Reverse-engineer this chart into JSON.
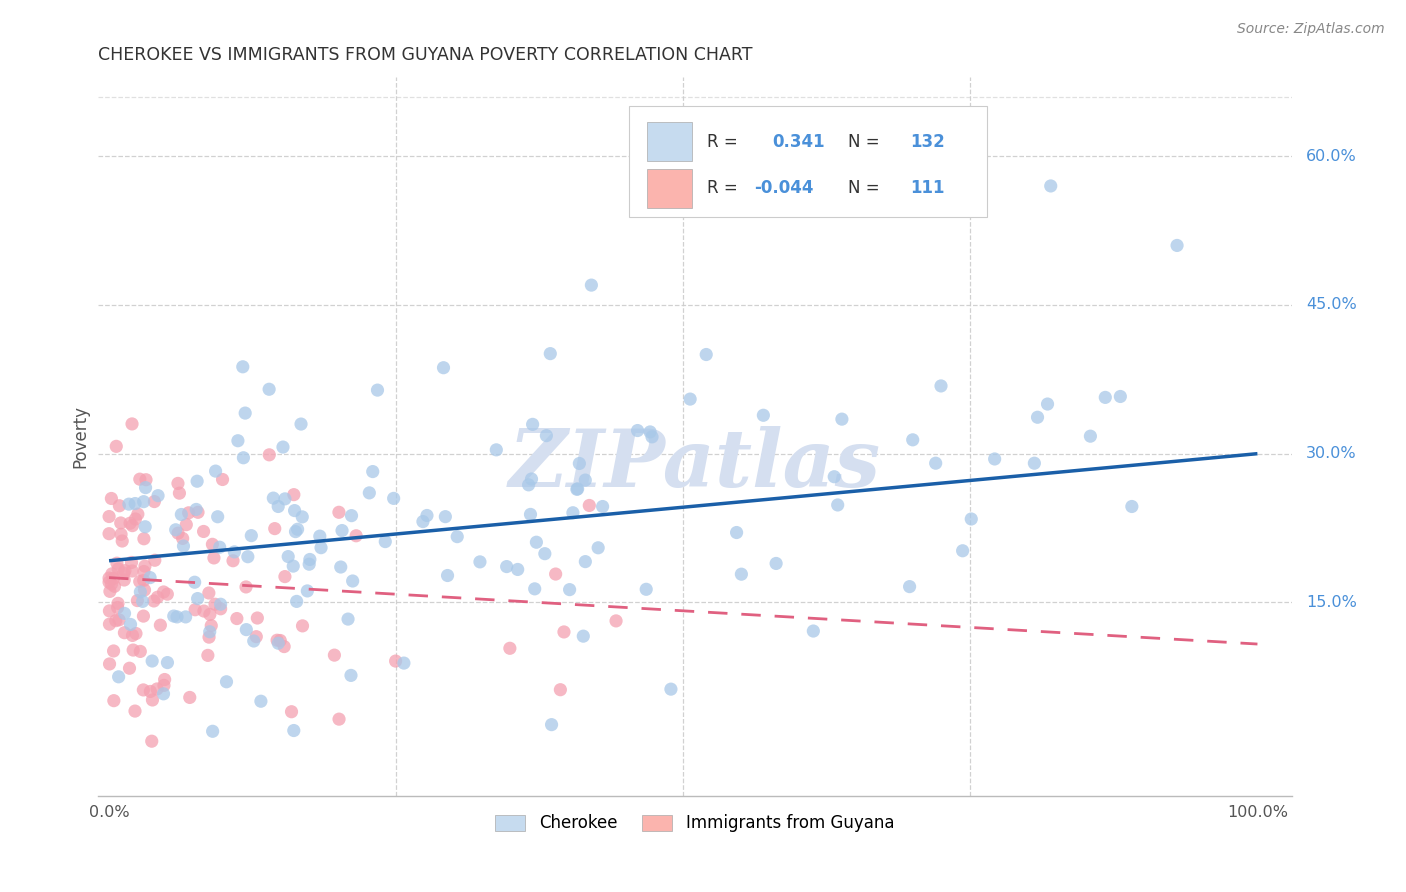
{
  "title": "CHEROKEE VS IMMIGRANTS FROM GUYANA POVERTY CORRELATION CHART",
  "source": "Source: ZipAtlas.com",
  "ylabel": "Poverty",
  "ytick_values": [
    0.15,
    0.3,
    0.45,
    0.6
  ],
  "ytick_labels": [
    "15.0%",
    "30.0%",
    "45.0%",
    "60.0%"
  ],
  "xlim": [
    -0.01,
    1.03
  ],
  "ylim": [
    -0.045,
    0.68
  ],
  "blue_scatter_color": "#a8c8e8",
  "blue_scatter_edge": "#ffffff",
  "pink_scatter_color": "#f4a0b0",
  "pink_scatter_edge": "#ffffff",
  "trend_blue_color": "#1a5fa8",
  "trend_pink_color": "#e06080",
  "background": "#ffffff",
  "grid_color": "#cccccc",
  "title_color": "#333333",
  "source_color": "#888888",
  "tick_right_color": "#4a90d9",
  "ylabel_color": "#555555",
  "xtick_color": "#555555",
  "watermark_color": "#d5dff0",
  "legend_box_color": "#eeeeee",
  "legend_r_color": "#333333",
  "legend_val_color": "#4a90d9",
  "blue_legend_fill": "#c6dbef",
  "pink_legend_fill": "#fbb4ae",
  "trend_blue_y0": 0.192,
  "trend_blue_y1": 0.3,
  "trend_pink_y0": 0.175,
  "trend_pink_y1": 0.108
}
